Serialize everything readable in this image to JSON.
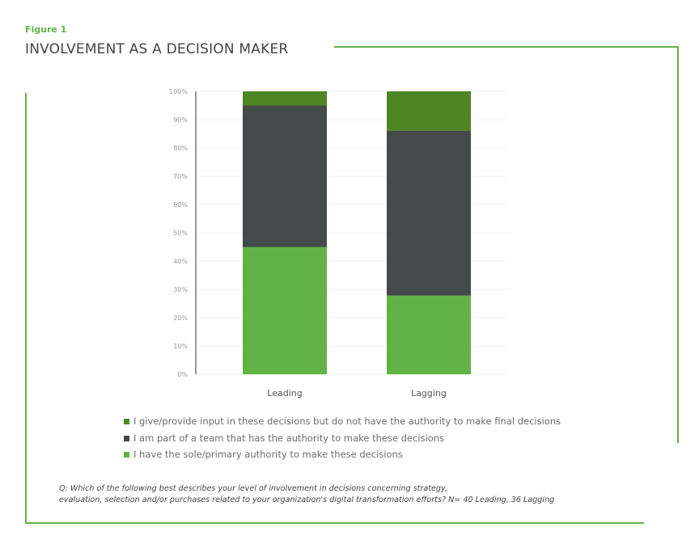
{
  "figure_label": "Figure 1",
  "title": "INVOLVEMENT AS A DECISION MAKER",
  "footnote": {
    "line1": "Q: Which of the following best describes your level of involvement in decisions concerning strategy,",
    "line2": "evaluation, selection and/or purchases related to your organization's digital transformation efforts? N= 40 Leading, 36 Lagging"
  },
  "colors": {
    "accent": "#62b346",
    "sole": "#62b346",
    "team": "#434a49",
    "input": "#4e8623"
  },
  "chart_data": {
    "type": "bar",
    "stacked": true,
    "categories": [
      "Leading",
      "Lagging"
    ],
    "ylim": [
      0,
      100
    ],
    "yticks": [
      "0%",
      "10%",
      "20%",
      "30%",
      "40%",
      "50%",
      "60%",
      "70%",
      "80%",
      "90%",
      "100%"
    ],
    "grid": true,
    "legend_position": "bottom",
    "series": [
      {
        "name": "I have the sole/primary authority to make these decisions",
        "color": "#62b346",
        "values": [
          45,
          27.8
        ]
      },
      {
        "name": "I am part of a team that has the authority to make these decisions",
        "color": "#434a49",
        "values": [
          50,
          58.3
        ]
      },
      {
        "name": "I give/provide input in these decisions but do not have the authority to make final decisions",
        "color": "#4e8623",
        "values": [
          5,
          13.9
        ]
      }
    ]
  }
}
